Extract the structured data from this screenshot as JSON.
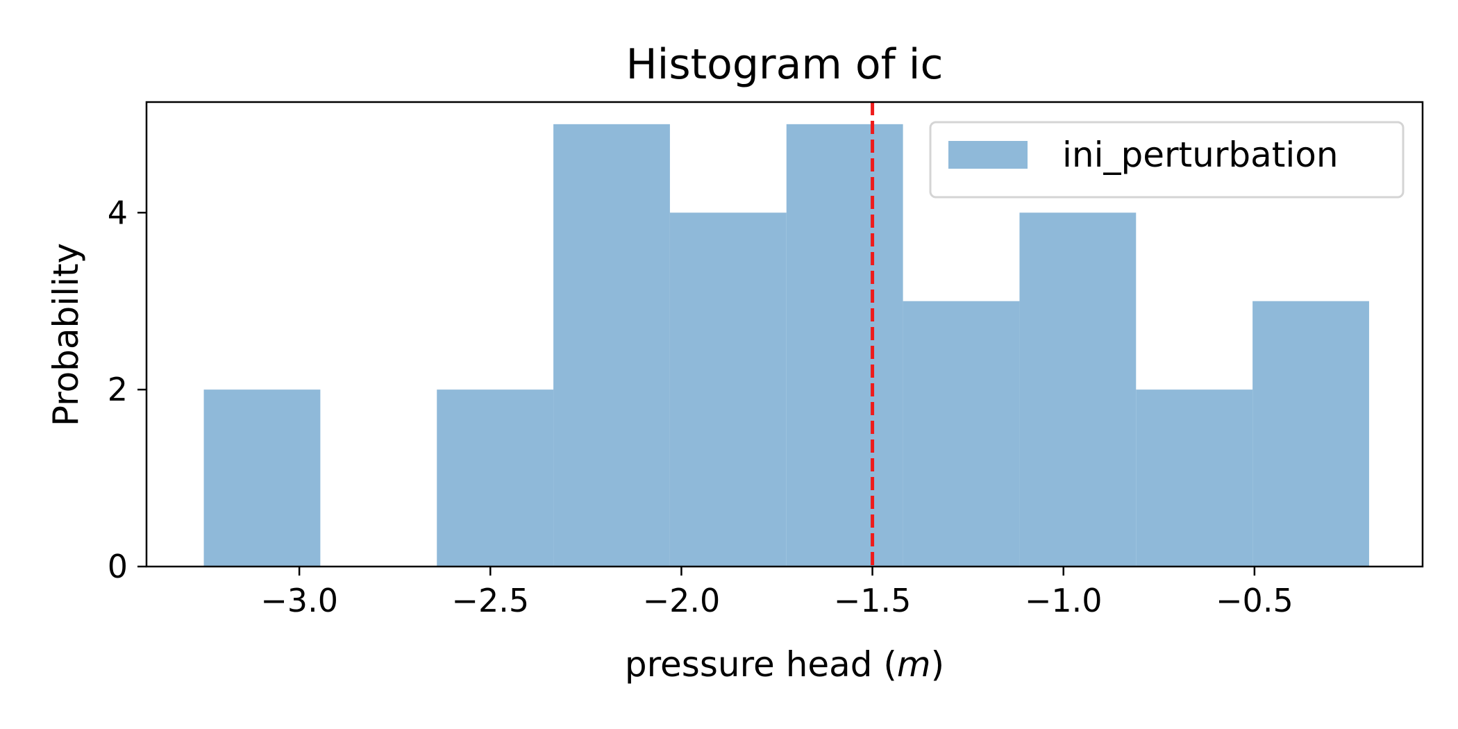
{
  "chart_data": {
    "type": "bar",
    "title": "Histogram of ic",
    "xlabel": "pressure head (m)",
    "xlabel_prefix": "pressure head (",
    "xlabel_unit": "m",
    "xlabel_suffix": ")",
    "ylabel": "Probability",
    "xlim": [
      -3.4,
      -0.06
    ],
    "ylim": [
      0,
      5.25
    ],
    "xticks": [
      -3.0,
      -2.5,
      -2.0,
      -1.5,
      -1.0,
      -0.5
    ],
    "xtick_labels": [
      "−3.0",
      "−2.5",
      "−2.0",
      "−1.5",
      "−1.0",
      "−0.5"
    ],
    "yticks": [
      0,
      2,
      4
    ],
    "ytick_labels": [
      "0",
      "2",
      "4"
    ],
    "bins": [
      [
        -3.25,
        -2.945
      ],
      [
        -2.945,
        -2.64
      ],
      [
        -2.64,
        -2.335
      ],
      [
        -2.335,
        -2.03
      ],
      [
        -2.03,
        -1.725
      ],
      [
        -1.725,
        -1.42
      ],
      [
        -1.42,
        -1.115
      ],
      [
        -1.115,
        -0.81
      ],
      [
        -0.81,
        -0.505
      ],
      [
        -0.505,
        -0.2
      ]
    ],
    "series": [
      {
        "name": "ini_perturbation",
        "values": [
          2,
          0,
          2,
          5,
          4,
          5,
          3,
          4,
          2,
          3
        ],
        "color": "#8fb9d9"
      }
    ],
    "mean_line": {
      "x": -1.5,
      "color": "#ee1c1c",
      "style": "dashed"
    },
    "legend_position": "upper right",
    "grid": false
  }
}
